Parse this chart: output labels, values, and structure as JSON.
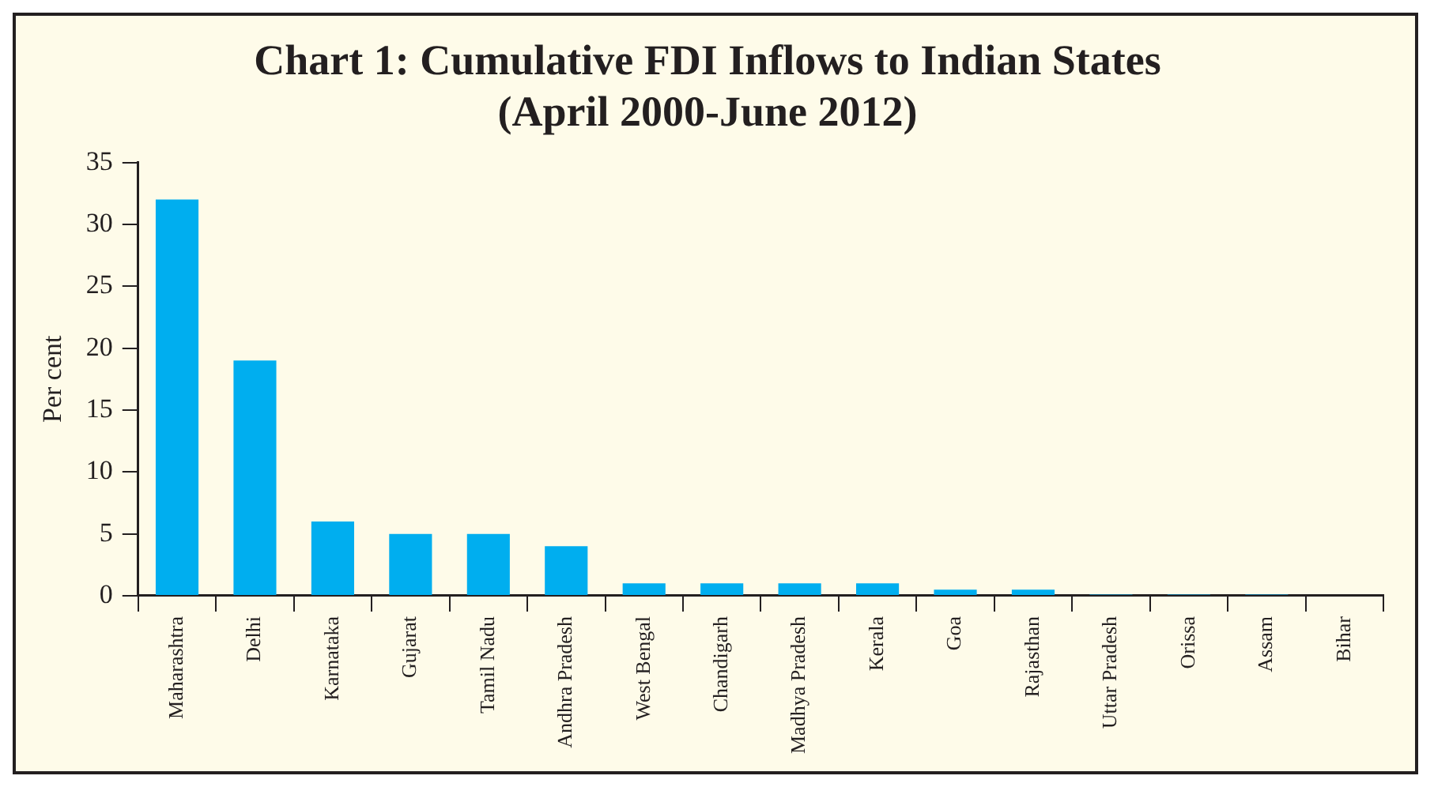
{
  "chart_data": {
    "type": "bar",
    "title": "Chart 1: Cumulative FDI Inflows to Indian States\n(April 2000-June 2012)",
    "ylabel": "Per cent",
    "categories": [
      "Maharashtra",
      "Delhi",
      "Karnataka",
      "Gujarat",
      "Tamil Nadu",
      "Andhra Pradesh",
      "West Bengal",
      "Chandigarh",
      "Madhya Pradesh",
      "Kerala",
      "Goa",
      "Rajasthan",
      "Uttar Pradesh",
      "Orissa",
      "Assam",
      "Bihar"
    ],
    "values": [
      32,
      19,
      6,
      5,
      5,
      4,
      1,
      1,
      1,
      1,
      0.5,
      0.5,
      0.1,
      0.1,
      0.1,
      0
    ],
    "color": "#00aeef",
    "ylim": [
      0,
      35
    ],
    "yticks": [
      0,
      5,
      10,
      15,
      20,
      25,
      30,
      35
    ],
    "grid": false,
    "legend": false
  }
}
